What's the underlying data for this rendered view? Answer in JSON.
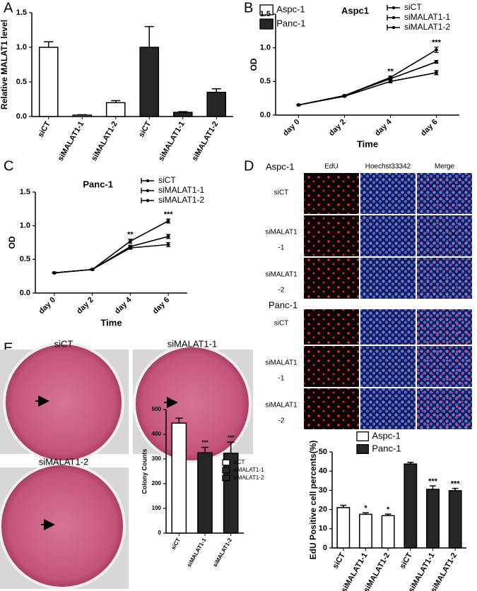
{
  "panel_labels": [
    "A",
    "B",
    "C",
    "D",
    "E"
  ],
  "edu_images": {
    "groups": [
      "Aspc-1",
      "Panc-1"
    ],
    "columns": [
      "EdU",
      "Hoechst33342",
      "Merge"
    ],
    "rows": [
      [
        "siCT"
      ],
      [
        "siMALAT1",
        "-1"
      ],
      [
        "siMALAT1",
        "-2"
      ]
    ]
  },
  "colony_images": [
    "siCT",
    "siMALAT1-1",
    "siMALAT1-2"
  ],
  "chart_data": [
    {
      "type": "bar",
      "ylabel": "Relative MALAT1 level",
      "categories": [
        "siCT",
        "siMALAT1-1",
        "siMALAT1-2",
        "siCT",
        "siMALAT1-1",
        "siMALAT1-2"
      ],
      "series": [
        {
          "name": "Aspc-1",
          "color": "#ffffff",
          "values": [
            1.0,
            0.02,
            0.2,
            null,
            null,
            null
          ],
          "errors": [
            0.08,
            0.005,
            0.03,
            null,
            null,
            null
          ]
        },
        {
          "name": "Panc-1",
          "color": "#262626",
          "values": [
            null,
            null,
            null,
            1.0,
            0.06,
            0.35
          ],
          "errors": [
            null,
            null,
            null,
            0.3,
            0.01,
            0.05
          ]
        }
      ],
      "ylim": [
        0,
        1.5
      ],
      "yticks": [
        {
          "value": 0,
          "label": "0.0"
        },
        0.5,
        {
          "value": 1,
          "label": "1.0"
        },
        1.5
      ]
    },
    {
      "type": "line",
      "title": "Aspc1",
      "xlabel": "Time",
      "ylabel": "OD",
      "categories": [
        "day 0",
        "day 2",
        "day 4",
        "day 6"
      ],
      "series": [
        {
          "name": "siCT",
          "color": "#000000",
          "values": [
            0.15,
            0.29,
            0.56,
            0.97
          ],
          "errors": [
            0.01,
            0.01,
            0.02,
            0.04
          ]
        },
        {
          "name": "siMALAT1-1",
          "color": "#000000",
          "values": [
            0.15,
            0.29,
            0.54,
            0.79
          ],
          "errors": [
            0.01,
            0.01,
            0.02,
            0.02
          ]
        },
        {
          "name": "siMALAT1-2",
          "color": "#000000",
          "values": [
            0.15,
            0.28,
            0.5,
            0.63
          ],
          "errors": [
            0.01,
            0.01,
            0.02,
            0.03
          ]
        }
      ],
      "annotations": [
        null,
        null,
        "**",
        "***"
      ],
      "ylim": [
        0,
        1.5
      ],
      "yticks": [
        {
          "value": 0,
          "label": "0.0"
        },
        0.5,
        {
          "value": 1,
          "label": "1.0"
        },
        1.5
      ]
    },
    {
      "type": "line",
      "title": "Panc-1",
      "xlabel": "Time",
      "ylabel": "OD",
      "categories": [
        "day 0",
        "day 2",
        "day 4",
        "day 6"
      ],
      "series": [
        {
          "name": "siCT",
          "color": "#000000",
          "values": [
            0.3,
            0.35,
            0.77,
            1.07
          ],
          "errors": [
            0.01,
            0.01,
            0.03,
            0.03
          ]
        },
        {
          "name": "siMALAT1-1",
          "color": "#000000",
          "values": [
            0.3,
            0.35,
            0.69,
            0.84
          ],
          "errors": [
            0.01,
            0.01,
            0.02,
            0.03
          ]
        },
        {
          "name": "siMALAT1-2",
          "color": "#000000",
          "values": [
            0.3,
            0.35,
            0.67,
            0.72
          ],
          "errors": [
            0.01,
            0.01,
            0.02,
            0.03
          ]
        }
      ],
      "annotations": [
        null,
        null,
        "**",
        "***"
      ],
      "ylim": [
        0,
        1.5
      ],
      "yticks": [
        {
          "value": 0,
          "label": "0.0"
        },
        0.5,
        {
          "value": 1,
          "label": "1.0"
        },
        1.5
      ]
    },
    {
      "type": "bar",
      "ylabel": "EdU Positive cell percents(%)",
      "categories": [
        "siCT",
        "siMALAT1-1",
        "siMALAT1-2",
        "siCT",
        "siMALAT1-1",
        "siMALAT1-2"
      ],
      "series": [
        {
          "name": "Aspc-1",
          "color": "#ffffff",
          "values": [
            21,
            17.5,
            16.8,
            null,
            null,
            null
          ],
          "errors": [
            1.2,
            0.8,
            0.8,
            null,
            null,
            null
          ]
        },
        {
          "name": "Panc-1",
          "color": "#262626",
          "values": [
            null,
            null,
            null,
            43.7,
            30.5,
            29.8
          ],
          "errors": [
            null,
            null,
            null,
            0.9,
            1.8,
            1.2
          ]
        }
      ],
      "annotations": [
        null,
        "*",
        "*",
        null,
        "***",
        "***"
      ],
      "ylim": [
        0,
        50
      ],
      "yticks": [
        0,
        10,
        20,
        30,
        40,
        50
      ]
    },
    {
      "type": "bar",
      "ylabel": "Colony Counts",
      "categories": [
        "siCT",
        "siMALAT1-1",
        "siMALAT1-2"
      ],
      "series": [
        {
          "name": "siCT",
          "color": "#ffffff",
          "values": [
            445,
            null,
            null
          ],
          "errors": [
            20,
            null,
            null
          ]
        },
        {
          "name": "siMALAT1-1",
          "color": "#262626",
          "values": [
            null,
            325,
            null
          ],
          "errors": [
            null,
            22,
            null
          ]
        },
        {
          "name": "siMALAT1-2",
          "color": "#262626",
          "values": [
            null,
            null,
            323
          ],
          "errors": [
            null,
            null,
            45
          ]
        }
      ],
      "annotations": [
        null,
        "***",
        "***"
      ],
      "ylim": [
        0,
        500
      ],
      "yticks": [
        0,
        100,
        200,
        300,
        400,
        500
      ]
    }
  ]
}
